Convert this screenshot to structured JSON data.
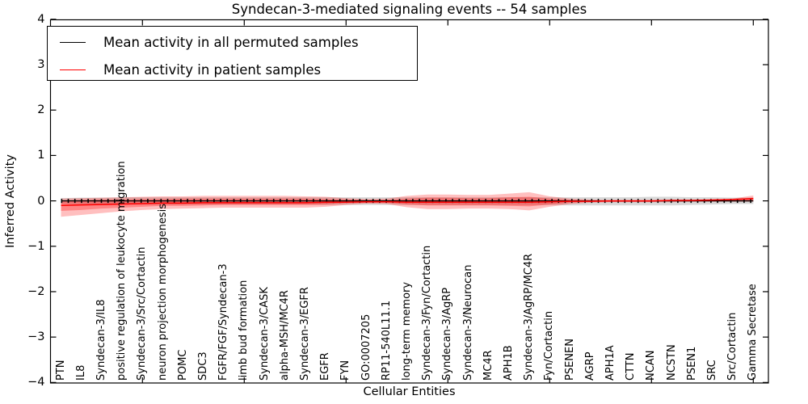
{
  "title": "Syndecan-3-mediated signaling events -- 54 samples",
  "legend": {
    "items": [
      {
        "label": "Mean activity in all permuted samples",
        "color": "#000000"
      },
      {
        "label": "Mean activity in patient samples",
        "color": "#ff0000"
      }
    ]
  },
  "axes": {
    "ylabel": "Inferred Activity",
    "xlabel": "Cellular Entities",
    "ytick_labels": [
      "4",
      "3",
      "2",
      "1",
      "0",
      "−1",
      "−2",
      "−3",
      "−4"
    ],
    "ytick_values": [
      4,
      3,
      2,
      1,
      0,
      -1,
      -2,
      -3,
      -4
    ],
    "xtick_indices": [
      4,
      9,
      14,
      19,
      24,
      29,
      34
    ]
  },
  "chart_data": {
    "type": "line",
    "title": "Syndecan-3-mediated signaling events -- 54 samples",
    "xlabel": "Cellular Entities",
    "ylabel": "Inferred Activity",
    "ylim": [
      -4,
      4
    ],
    "grid": false,
    "legend_position": "upper left",
    "categories": [
      "PTN",
      "IL8",
      "Syndecan-3/IL8",
      "positive regulation of leukocyte migration",
      "Syndecan-3/Src/Cortactin",
      "neuron projection morphogenesis",
      "POMC",
      "SDC3",
      "FGFR/FGF/Syndecan-3",
      "limb bud formation",
      "Syndecan-3/CASK",
      "alpha-MSH/MC4R",
      "Syndecan-3/EGFR",
      "EGFR",
      "FYN",
      "GO:0007205",
      "RP11-540L11.1",
      "long-term memory",
      "Syndecan-3/Fyn/Cortactin",
      "Syndecan-3/AgRP",
      "Syndecan-3/Neurocan",
      "MC4R",
      "APH1B",
      "Syndecan-3/AgRP/MC4R",
      "Fyn/Cortactin",
      "PSENEN",
      "AGRP",
      "APH1A",
      "CTTN",
      "NCAN",
      "NCSTN",
      "PSEN1",
      "SRC",
      "Src/Cortactin",
      "Gamma Secretase"
    ],
    "series": [
      {
        "name": "Mean activity in all permuted samples",
        "color": "#000000",
        "width": 1.3,
        "marker": "tick",
        "values": [
          0,
          0,
          0,
          0,
          0,
          0,
          0,
          0,
          0,
          0,
          0,
          0,
          0,
          0,
          0,
          0,
          0,
          0,
          0,
          0,
          0,
          0,
          0,
          0,
          0,
          0,
          0,
          0,
          0,
          0,
          0,
          0,
          0,
          0,
          0
        ]
      },
      {
        "name": "Mean activity in patient samples",
        "color": "#ff0000",
        "width": 1.5,
        "marker": "none",
        "values": [
          -0.1,
          -0.09,
          -0.08,
          -0.07,
          -0.06,
          -0.05,
          -0.05,
          -0.04,
          -0.04,
          -0.04,
          -0.04,
          -0.04,
          -0.04,
          -0.03,
          -0.03,
          -0.02,
          -0.02,
          -0.03,
          -0.03,
          -0.03,
          -0.03,
          -0.03,
          -0.03,
          -0.03,
          -0.02,
          -0.01,
          -0.01,
          0.0,
          0.0,
          0.0,
          0.01,
          0.01,
          0.02,
          0.03,
          0.05
        ]
      }
    ],
    "bands": [
      {
        "name": "permuted-samples-range",
        "color": "#999999",
        "alpha": 0.38,
        "top": [
          0.06,
          0.07,
          0.07,
          0.08,
          0.08,
          0.08,
          0.08,
          0.08,
          0.08,
          0.08,
          0.08,
          0.08,
          0.08,
          0.08,
          0.08,
          0.08,
          0.08,
          0.08,
          0.08,
          0.08,
          0.08,
          0.08,
          0.08,
          0.08,
          0.08,
          0.08,
          0.08,
          0.08,
          0.08,
          0.09,
          0.09,
          0.08,
          0.08,
          0.07,
          0.07
        ],
        "bottom": [
          -0.06,
          -0.07,
          -0.07,
          -0.08,
          -0.08,
          -0.08,
          -0.08,
          -0.08,
          -0.08,
          -0.08,
          -0.08,
          -0.08,
          -0.08,
          -0.09,
          -0.09,
          -0.09,
          -0.09,
          -0.09,
          -0.09,
          -0.09,
          -0.09,
          -0.09,
          -0.09,
          -0.09,
          -0.09,
          -0.1,
          -0.1,
          -0.1,
          -0.1,
          -0.1,
          -0.1,
          -0.09,
          -0.08,
          -0.07,
          -0.07
        ]
      },
      {
        "name": "patient-samples-range-outer",
        "color": "#ff0000",
        "alpha": 0.25,
        "top": [
          0.05,
          0.06,
          0.07,
          0.08,
          0.09,
          0.1,
          0.1,
          0.11,
          0.11,
          0.11,
          0.11,
          0.11,
          0.1,
          0.09,
          0.06,
          0.04,
          0.05,
          0.11,
          0.14,
          0.14,
          0.13,
          0.13,
          0.16,
          0.19,
          0.1,
          0.05,
          0.03,
          0.02,
          0.02,
          0.02,
          0.02,
          0.02,
          0.03,
          0.05,
          0.12
        ],
        "bottom": [
          -0.35,
          -0.31,
          -0.27,
          -0.23,
          -0.2,
          -0.18,
          -0.17,
          -0.16,
          -0.15,
          -0.15,
          -0.15,
          -0.15,
          -0.15,
          -0.13,
          -0.09,
          -0.06,
          -0.07,
          -0.14,
          -0.18,
          -0.18,
          -0.17,
          -0.17,
          -0.18,
          -0.21,
          -0.13,
          -0.07,
          -0.04,
          -0.03,
          -0.03,
          -0.03,
          -0.03,
          -0.02,
          -0.02,
          -0.02,
          -0.02
        ]
      },
      {
        "name": "patient-samples-range-inner",
        "color": "#ff0000",
        "alpha": 0.3,
        "top": [
          0.01,
          0.02,
          0.03,
          0.03,
          0.04,
          0.04,
          0.05,
          0.05,
          0.05,
          0.05,
          0.05,
          0.05,
          0.05,
          0.04,
          0.03,
          0.02,
          0.02,
          0.05,
          0.07,
          0.07,
          0.06,
          0.06,
          0.08,
          0.09,
          0.05,
          0.02,
          0.01,
          0.01,
          0.01,
          0.01,
          0.01,
          0.01,
          0.02,
          0.03,
          0.07
        ],
        "bottom": [
          -0.22,
          -0.2,
          -0.17,
          -0.15,
          -0.13,
          -0.11,
          -0.11,
          -0.1,
          -0.09,
          -0.09,
          -0.09,
          -0.09,
          -0.09,
          -0.08,
          -0.05,
          -0.04,
          -0.04,
          -0.08,
          -0.1,
          -0.1,
          -0.1,
          -0.1,
          -0.11,
          -0.12,
          -0.08,
          -0.04,
          -0.02,
          -0.02,
          -0.02,
          -0.02,
          -0.01,
          -0.01,
          -0.01,
          -0.01,
          0.0
        ]
      }
    ]
  }
}
